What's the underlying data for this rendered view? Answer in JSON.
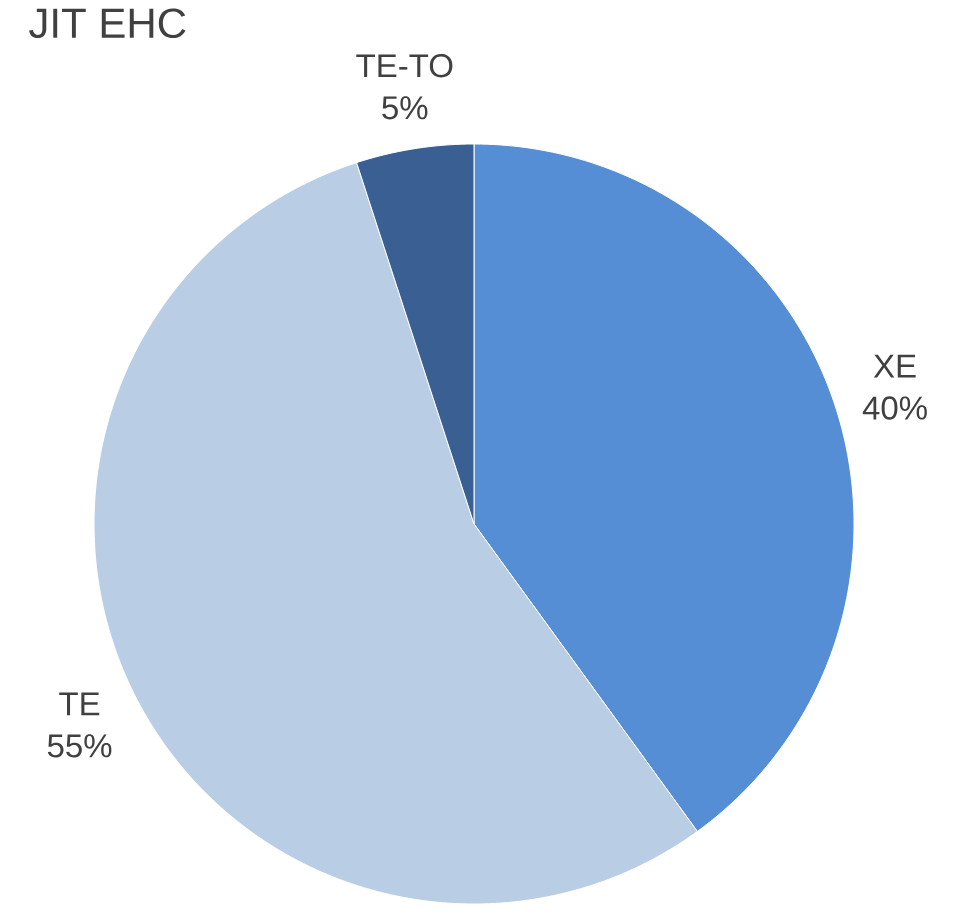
{
  "chart_data": {
    "type": "pie",
    "title": "JIT EHC",
    "categories": [
      "XE",
      "TE",
      "TE-TO"
    ],
    "values": [
      40,
      55,
      5
    ],
    "value_labels": [
      "40%",
      "55%",
      "5%"
    ],
    "colors": [
      "#558ed5",
      "#b9cde5",
      "#3a5f93"
    ]
  }
}
